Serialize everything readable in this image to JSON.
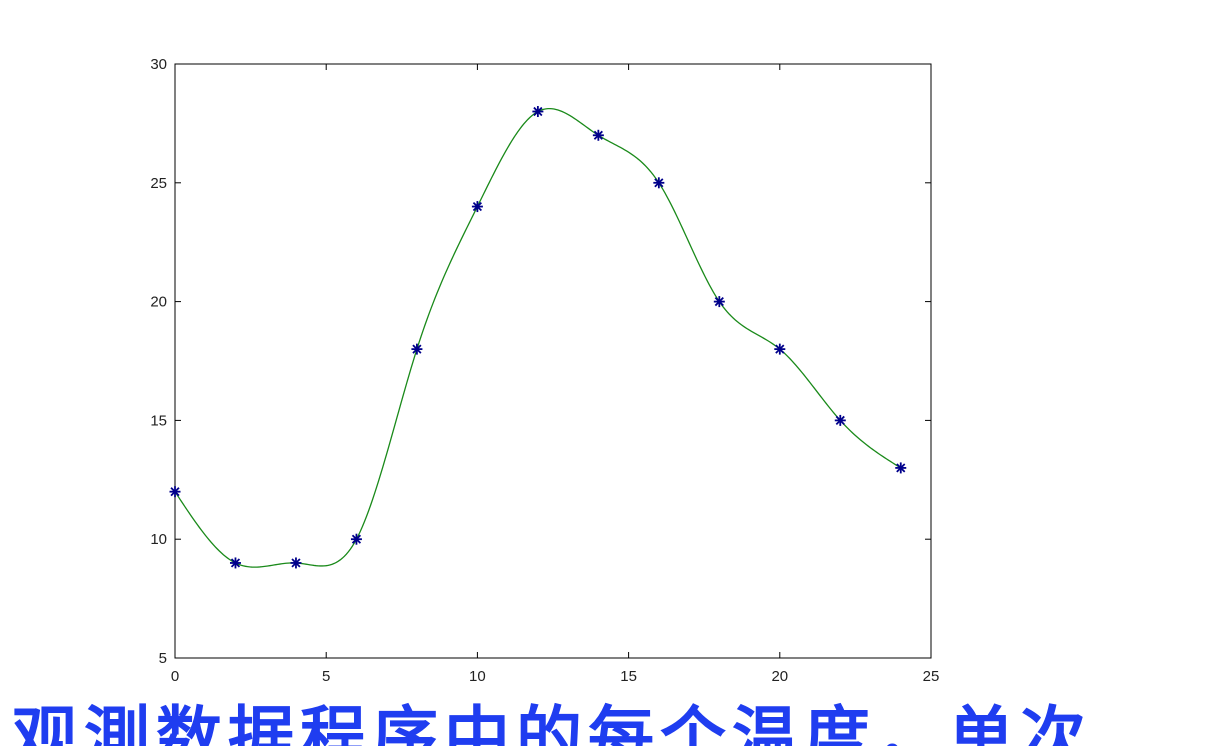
{
  "chart_data": {
    "type": "line",
    "x": [
      0,
      2,
      4,
      6,
      8,
      10,
      12,
      14,
      16,
      18,
      20,
      22,
      24
    ],
    "series": [
      {
        "values": [
          12,
          9,
          9,
          10,
          18,
          24,
          28,
          27,
          25,
          20,
          18,
          15,
          13
        ],
        "color": "#00008b",
        "marker": "asterisk",
        "line_color": "#1a8a1a",
        "curve": "spline interpolation through data points"
      }
    ],
    "xlim": [
      0,
      25
    ],
    "ylim": [
      5,
      30
    ],
    "xticks": [
      "0",
      "5",
      "10",
      "15",
      "20",
      "25"
    ],
    "yticks": [
      "5",
      "10",
      "15",
      "20",
      "25",
      "30"
    ],
    "title": "",
    "xlabel": "",
    "ylabel": "",
    "grid": false
  },
  "caption": {
    "text": "观測数据程序中的每个温度，单次"
  }
}
